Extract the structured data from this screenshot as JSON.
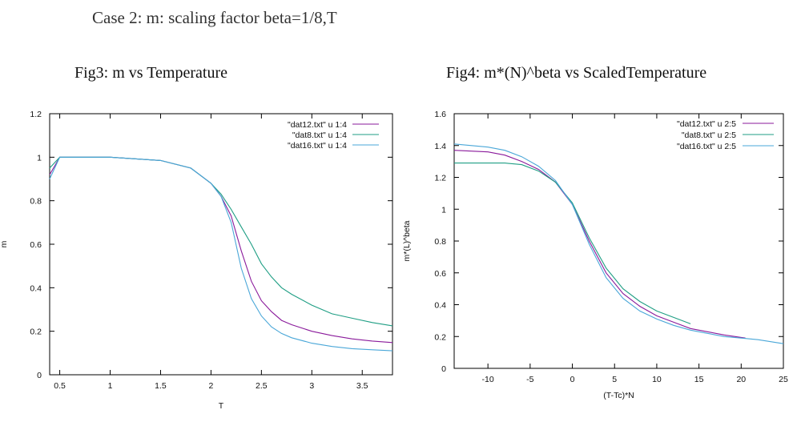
{
  "page": {
    "case_title": "Case 2: m: scaling factor beta=1/8,T",
    "fig3_title": "Fig3: m vs Temperature",
    "fig4_title": "Fig4: m*(N)^beta vs ScaledTemperature"
  },
  "colors": {
    "series_12": "#8a1a9b",
    "series_8": "#1f9e84",
    "series_16": "#4aa7d8",
    "axis": "#000000"
  },
  "chart_data": [
    {
      "type": "line",
      "title": "",
      "xlabel": "T",
      "ylabel": "m",
      "xlim": [
        0.4,
        3.8
      ],
      "ylim": [
        0,
        1.2
      ],
      "xticks": [
        0.5,
        1,
        1.5,
        2,
        2.5,
        3,
        3.5
      ],
      "xtick_labels": [
        "0.5",
        "1",
        "1.5",
        "2",
        "2.5",
        "3",
        "3.5"
      ],
      "yticks": [
        0,
        0.2,
        0.4,
        0.6,
        0.8,
        1,
        1.2
      ],
      "ytick_labels": [
        "0",
        "0.2",
        "0.4",
        "0.6",
        "0.8",
        "1",
        "1.2"
      ],
      "grid": false,
      "legend_position": "top-right",
      "series": [
        {
          "name": "\"dat12.txt\" u 1:4",
          "color_key": "series_12",
          "x": [
            0.4,
            0.5,
            1.0,
            1.5,
            1.8,
            2.0,
            2.1,
            2.2,
            2.3,
            2.4,
            2.5,
            2.6,
            2.7,
            2.8,
            3.0,
            3.2,
            3.4,
            3.6,
            3.8
          ],
          "y": [
            0.92,
            1.0,
            1.0,
            0.985,
            0.95,
            0.88,
            0.82,
            0.73,
            0.57,
            0.43,
            0.34,
            0.29,
            0.25,
            0.23,
            0.2,
            0.18,
            0.165,
            0.155,
            0.148
          ]
        },
        {
          "name": "\"dat8.txt\" u 1:4",
          "color_key": "series_8",
          "x": [
            0.4,
            0.5,
            1.0,
            1.5,
            1.8,
            2.0,
            2.1,
            2.2,
            2.3,
            2.4,
            2.5,
            2.6,
            2.7,
            2.8,
            3.0,
            3.2,
            3.4,
            3.6,
            3.8
          ],
          "y": [
            0.95,
            1.0,
            1.0,
            0.985,
            0.95,
            0.88,
            0.83,
            0.76,
            0.68,
            0.6,
            0.51,
            0.45,
            0.4,
            0.37,
            0.32,
            0.28,
            0.26,
            0.24,
            0.225
          ]
        },
        {
          "name": "\"dat16.txt\" u 1:4",
          "color_key": "series_16",
          "x": [
            0.4,
            0.5,
            1.0,
            1.5,
            1.8,
            2.0,
            2.1,
            2.2,
            2.3,
            2.4,
            2.5,
            2.6,
            2.7,
            2.8,
            3.0,
            3.2,
            3.4,
            3.6,
            3.8
          ],
          "y": [
            0.9,
            1.0,
            1.0,
            0.985,
            0.95,
            0.88,
            0.82,
            0.7,
            0.49,
            0.35,
            0.27,
            0.22,
            0.19,
            0.17,
            0.145,
            0.13,
            0.12,
            0.115,
            0.11
          ]
        }
      ]
    },
    {
      "type": "line",
      "title": "",
      "xlabel": "(T-Tc)*N",
      "ylabel": "m*(L)^beta",
      "xlim": [
        -14,
        25
      ],
      "ylim": [
        0,
        1.6
      ],
      "xticks": [
        -10,
        -5,
        0,
        5,
        10,
        15,
        20,
        25
      ],
      "xtick_labels": [
        "-10",
        "-5",
        "0",
        "5",
        "10",
        "15",
        "20",
        "25"
      ],
      "yticks": [
        0,
        0.2,
        0.4,
        0.6,
        0.8,
        1,
        1.2,
        1.4,
        1.6
      ],
      "ytick_labels": [
        "0",
        "0.2",
        "0.4",
        "0.6",
        "0.8",
        "1",
        "1.2",
        "1.4",
        "1.6"
      ],
      "grid": false,
      "legend_position": "top-right",
      "series": [
        {
          "name": "\"dat12.txt\" u 2:5",
          "color_key": "series_12",
          "x": [
            -14,
            -10,
            -8,
            -6,
            -4,
            -2,
            0,
            2,
            4,
            6,
            8,
            10,
            12,
            14,
            16,
            18,
            20.5
          ],
          "y": [
            1.37,
            1.36,
            1.34,
            1.3,
            1.25,
            1.17,
            1.03,
            0.8,
            0.6,
            0.47,
            0.39,
            0.33,
            0.29,
            0.25,
            0.23,
            0.21,
            0.19
          ]
        },
        {
          "name": "\"dat8.txt\" u 2:5",
          "color_key": "series_8",
          "x": [
            -14,
            -10,
            -8,
            -6,
            -4,
            -2,
            0,
            2,
            4,
            6,
            8,
            10,
            12,
            14
          ],
          "y": [
            1.29,
            1.29,
            1.29,
            1.28,
            1.24,
            1.17,
            1.04,
            0.82,
            0.63,
            0.5,
            0.42,
            0.36,
            0.32,
            0.28
          ]
        },
        {
          "name": "\"dat16.txt\" u 2:5",
          "color_key": "series_16",
          "x": [
            -14,
            -10,
            -8,
            -6,
            -4,
            -2,
            0,
            2,
            4,
            6,
            8,
            10,
            12,
            14,
            16,
            18,
            20,
            22,
            25
          ],
          "y": [
            1.41,
            1.39,
            1.37,
            1.33,
            1.27,
            1.18,
            1.03,
            0.78,
            0.57,
            0.44,
            0.36,
            0.31,
            0.27,
            0.24,
            0.22,
            0.2,
            0.19,
            0.18,
            0.155
          ]
        }
      ]
    }
  ]
}
